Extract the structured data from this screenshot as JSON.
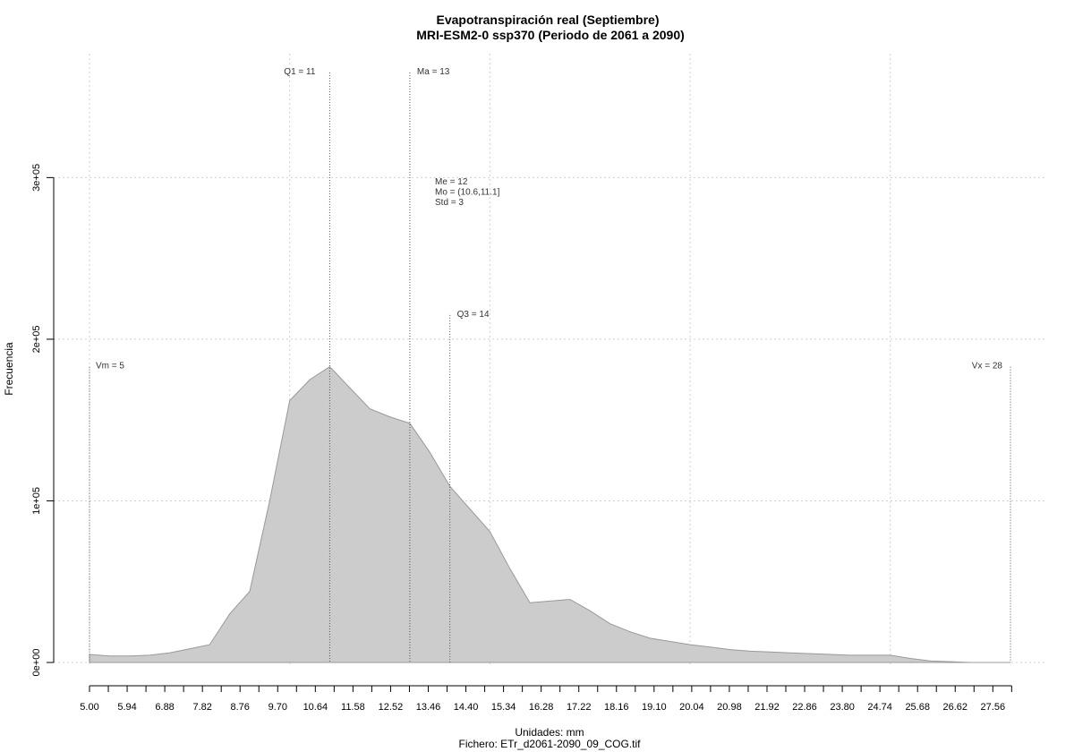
{
  "chart_data": {
    "type": "area",
    "title": "Evapotranspiración real (Septiembre)",
    "subtitle": "MRI-ESM2-0 ssp370 (Periodo de 2061 a 2090)",
    "xlabel": "Unidades: mm",
    "ylabel": "Frecuencia",
    "caption": "Fichero: ETr_d2061-2090_09_COG.tif",
    "xlim": [
      5.0,
      28.0
    ],
    "ylim": [
      0,
      370000
    ],
    "x_ticks": [
      "5.00",
      "5.94",
      "6.88",
      "7.82",
      "8.76",
      "9.70",
      "10.64",
      "11.58",
      "12.52",
      "13.46",
      "14.40",
      "15.34",
      "16.28",
      "17.22",
      "18.16",
      "19.10",
      "20.04",
      "20.98",
      "21.92",
      "22.86",
      "23.80",
      "24.74",
      "25.68",
      "26.62",
      "27.56"
    ],
    "y_ticks": [
      {
        "value": 0,
        "label": "0e+00"
      },
      {
        "value": 100000,
        "label": "1e+05"
      },
      {
        "value": 200000,
        "label": "2e+05"
      },
      {
        "value": 300000,
        "label": "3e+05"
      }
    ],
    "grid": true,
    "fill_color": "#cccccc",
    "line_color": "#999999",
    "x": [
      5.0,
      5.5,
      6.0,
      6.5,
      7.0,
      7.5,
      8.0,
      8.5,
      9.0,
      9.5,
      10.0,
      10.5,
      11.0,
      11.5,
      12.0,
      12.5,
      13.0,
      13.5,
      14.0,
      14.5,
      15.0,
      15.5,
      16.0,
      16.5,
      17.0,
      17.5,
      18.0,
      18.5,
      19.0,
      19.5,
      20.0,
      20.5,
      21.0,
      21.5,
      22.0,
      22.5,
      23.0,
      23.5,
      24.0,
      24.5,
      25.0,
      25.5,
      26.0,
      26.5,
      27.0,
      27.5,
      28.0
    ],
    "values": [
      5000,
      4000,
      4000,
      4500,
      6000,
      8500,
      11000,
      30000,
      44000,
      100000,
      162000,
      175000,
      183000,
      170000,
      157000,
      152000,
      148000,
      130000,
      109000,
      95000,
      81000,
      58000,
      37000,
      38000,
      39000,
      32000,
      24000,
      19000,
      15000,
      13000,
      11000,
      9500,
      8000,
      7000,
      6500,
      6000,
      5500,
      5000,
      4500,
      4500,
      4500,
      2500,
      1000,
      500,
      0,
      0,
      0
    ],
    "annotations": [
      {
        "id": "vm",
        "label": "Vm = 5",
        "x": 5.0,
        "y_top": 183000
      },
      {
        "id": "q1",
        "label": "Q1 = 11",
        "x": 11.0,
        "y_top": 365000
      },
      {
        "id": "ma",
        "label": "Ma = 13",
        "x": 13.0,
        "y_top": 365000
      },
      {
        "id": "q3",
        "label": "Q3 = 14",
        "x": 14.0,
        "y_top": 215000
      },
      {
        "id": "vx",
        "label": "Vx = 28",
        "x": 28.0,
        "y_top": 183000
      }
    ],
    "stats": [
      "Me = 12",
      "Mo = (10.6,11.1]",
      "Std = 3"
    ]
  }
}
